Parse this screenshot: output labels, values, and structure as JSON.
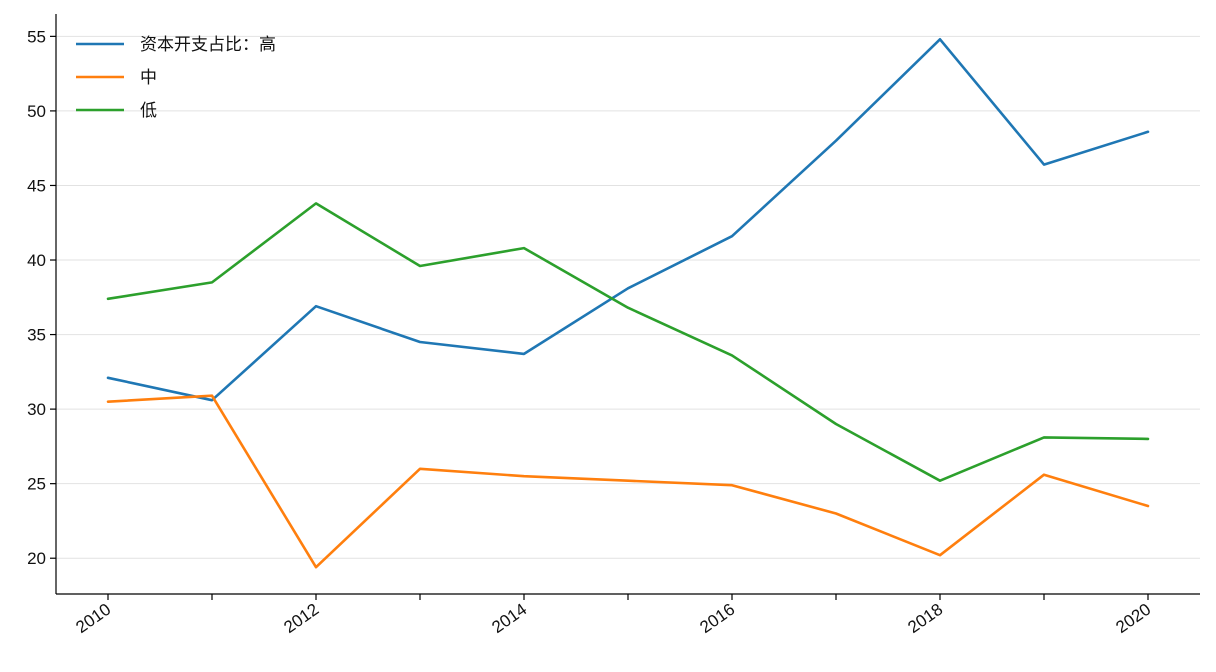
{
  "chart_data": {
    "type": "line",
    "title": "",
    "xlabel": "",
    "ylabel": "",
    "x": [
      2010,
      2011,
      2012,
      2013,
      2014,
      2015,
      2016,
      2017,
      2018,
      2019,
      2020
    ],
    "x_tick_labels": [
      "2010",
      "2012",
      "2014",
      "2016",
      "2018",
      "2020"
    ],
    "y_tick_labels": [
      "20",
      "25",
      "30",
      "35",
      "40",
      "45",
      "50",
      "55"
    ],
    "xlim": [
      2009.5,
      2020.5
    ],
    "ylim": [
      17.6,
      56.5
    ],
    "grid": "y",
    "legend_position": "top-left",
    "series": [
      {
        "name": "资本开支占比：高",
        "color": "#1f77b4",
        "values": [
          32.1,
          30.6,
          36.9,
          34.5,
          33.7,
          38.1,
          41.6,
          48.0,
          54.8,
          46.4,
          48.6
        ]
      },
      {
        "name": "中",
        "color": "#ff7f0e",
        "values": [
          30.5,
          30.9,
          19.4,
          26.0,
          25.5,
          25.2,
          24.9,
          23.0,
          20.2,
          25.6,
          23.5
        ]
      },
      {
        "name": "低",
        "color": "#2ca02c",
        "values": [
          37.4,
          38.5,
          43.8,
          39.6,
          40.8,
          36.8,
          33.6,
          29.0,
          25.2,
          28.1,
          28.0
        ]
      }
    ]
  }
}
